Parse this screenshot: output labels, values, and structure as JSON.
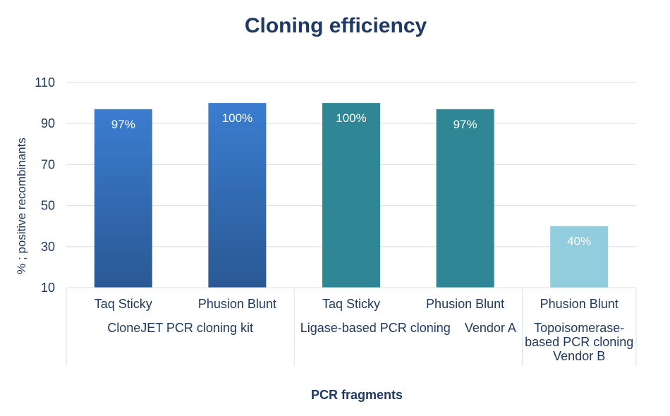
{
  "chart_data": {
    "type": "bar",
    "title": "Cloning efficiency",
    "xlabel": "PCR fragments",
    "ylabel": "% ; positive recombinants",
    "ylim": [
      10,
      110
    ],
    "yticks": [
      10,
      30,
      50,
      70,
      90,
      110
    ],
    "grid": true,
    "categories": [
      "Taq   Sticky",
      "Phusion Blunt",
      "Taq   Sticky",
      "Phusion Blunt",
      "Phusion Blunt"
    ],
    "groups": [
      {
        "label": "CloneJET PCR cloning kit",
        "lines": [
          "CloneJET PCR cloning kit"
        ],
        "count": 2
      },
      {
        "label": "Ligase-based PCR cloning   Vendor A",
        "lines": [
          "Ligase-based PCR cloning    Vendor A"
        ],
        "count": 2
      },
      {
        "label": "Topoisomerase-based PCR cloning Vendor B",
        "lines": [
          "Topoisomerase-",
          "based PCR cloning",
          "Vendor B"
        ],
        "count": 1
      }
    ],
    "values": [
      97,
      100,
      100,
      97,
      40
    ],
    "data_labels": [
      "97%",
      "100%",
      "100%",
      "97%",
      "40%"
    ],
    "bar_colors": [
      {
        "top": "#3b7dd0",
        "bottom": "#2a5894"
      },
      {
        "top": "#3b7dd0",
        "bottom": "#2a5894"
      },
      {
        "top": "#2f8796",
        "bottom": "#2f8796"
      },
      {
        "top": "#2f8796",
        "bottom": "#2f8796"
      },
      {
        "top": "#92cddd",
        "bottom": "#92cddd"
      }
    ],
    "colors": {
      "title": "#1f3864",
      "axis_text": "#1f3864",
      "grid": "#d6e0ec",
      "data_label": "#ffffff"
    }
  }
}
